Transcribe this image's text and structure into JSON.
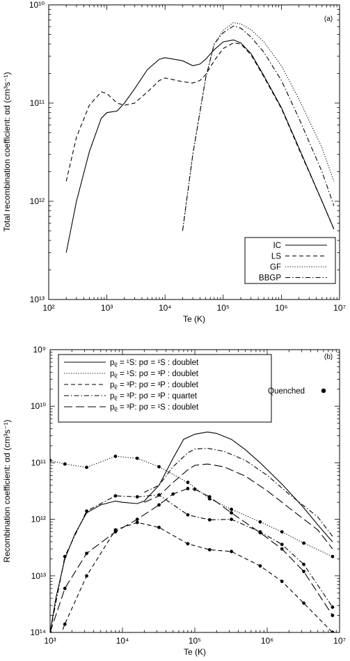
{
  "chart_data": [
    {
      "type": "line",
      "panel_label": "(a)",
      "xlabel": "Te (K)",
      "ylabel": "Total recombination coefficient: αd (cm³s⁻¹)",
      "xscale": "log",
      "yscale": "log",
      "xlim": [
        100,
        10000000
      ],
      "ylim": [
        1e-13,
        1e-10
      ],
      "x_ticks": [
        {
          "value": 100,
          "label": "10²"
        },
        {
          "value": 1000,
          "label": "10³"
        },
        {
          "value": 10000,
          "label": "10⁴"
        },
        {
          "value": 100000,
          "label": "10⁵"
        },
        {
          "value": 1000000,
          "label": "10⁶"
        },
        {
          "value": 10000000,
          "label": "10⁷"
        }
      ],
      "y_ticks": [
        {
          "value": 1e-10,
          "label": "10¹⁰"
        },
        {
          "value": 1e-11,
          "label": "10¹¹"
        },
        {
          "value": 1e-12,
          "label": "10¹²"
        },
        {
          "value": 1e-13,
          "label": "10¹³"
        }
      ],
      "legend_position": "bottom-right",
      "series": [
        {
          "name": "IC",
          "dash": "solid",
          "x": [
            200,
            300,
            500,
            800,
            1000,
            1500,
            2000,
            3000,
            5000,
            8000,
            10000,
            20000,
            30000,
            40000,
            50000,
            70000,
            100000,
            150000,
            200000,
            300000,
            500000,
            1000000,
            2000000,
            5000000,
            8000000
          ],
          "y": [
            3e-13,
            1e-12,
            3.2e-12,
            7e-12,
            8e-12,
            8.3e-12,
            1e-11,
            1.4e-11,
            2.2e-11,
            2.8e-11,
            2.9e-11,
            2.7e-11,
            2.4e-11,
            2.5e-11,
            2.8e-11,
            3.5e-11,
            4.2e-11,
            4.4e-11,
            4.1e-11,
            3.2e-11,
            1.9e-11,
            9e-12,
            3.5e-12,
            1e-12,
            5.2e-13
          ]
        },
        {
          "name": "LS",
          "dash": "dashed",
          "x": [
            200,
            300,
            500,
            800,
            1000,
            1500,
            2000,
            3000,
            5000,
            8000,
            10000,
            20000,
            30000,
            40000,
            50000,
            70000,
            100000,
            150000,
            200000,
            300000,
            500000,
            1000000,
            2000000,
            5000000,
            8000000
          ],
          "y": [
            1.6e-12,
            4.5e-12,
            9.5e-12,
            1.3e-11,
            1.25e-11,
            1e-11,
            9.5e-12,
            1e-11,
            1.3e-11,
            1.7e-11,
            1.8e-11,
            1.65e-11,
            1.6e-11,
            1.7e-11,
            1.95e-11,
            2.7e-11,
            3.6e-11,
            4.1e-11,
            4e-11,
            3.1e-11,
            1.85e-11,
            8.8e-12,
            3.4e-12,
            1e-12,
            5.2e-13
          ]
        },
        {
          "name": "GF",
          "dash": "dotted",
          "x": [
            20000,
            30000,
            50000,
            70000,
            100000,
            150000,
            200000,
            300000,
            500000,
            1000000,
            2000000,
            5000000,
            8000000
          ],
          "y": [
            5e-13,
            3e-12,
            1.8e-11,
            4e-11,
            5.5e-11,
            6.6e-11,
            6.4e-11,
            5.6e-11,
            4.2e-11,
            2.4e-11,
            1.1e-11,
            3.5e-12,
            1.6e-12
          ]
        },
        {
          "name": "BBGP",
          "dash": "dashdot",
          "x": [
            20000,
            30000,
            50000,
            70000,
            100000,
            150000,
            200000,
            300000,
            500000,
            1000000,
            2000000,
            5000000,
            8000000
          ],
          "y": [
            5e-13,
            3e-12,
            1.8e-11,
            4e-11,
            5.2e-11,
            6.1e-11,
            5.8e-11,
            4.7e-11,
            3.3e-11,
            1.7e-11,
            7e-12,
            2e-12,
            9e-13
          ]
        }
      ]
    },
    {
      "type": "line",
      "panel_label": "(b)",
      "xlabel": "Te (K)",
      "ylabel": "Recombination coefficient: αd (cm³s⁻¹)",
      "xscale": "log",
      "yscale": "log",
      "xlim": [
        1000,
        10000000
      ],
      "ylim": [
        1e-14,
        1e-09
      ],
      "x_ticks": [
        {
          "value": 1000,
          "label": "10³"
        },
        {
          "value": 10000,
          "label": "10⁴"
        },
        {
          "value": 100000,
          "label": "10⁵"
        },
        {
          "value": 1000000,
          "label": "10⁶"
        },
        {
          "value": 10000000,
          "label": "10⁷"
        }
      ],
      "y_ticks": [
        {
          "value": 1e-09,
          "label": "10⁹"
        },
        {
          "value": 1e-10,
          "label": "10¹⁰"
        },
        {
          "value": 1e-11,
          "label": "10¹¹"
        },
        {
          "value": 1e-12,
          "label": "10¹²"
        },
        {
          "value": 1e-13,
          "label": "10¹³"
        },
        {
          "value": 1e-14,
          "label": "10¹⁴"
        }
      ],
      "legend_position": "top-left",
      "quenched_label": "Quenched",
      "series": [
        {
          "name": "pᵨ = ¹S: pσ = ¹S : doublet",
          "dash": "solid",
          "x": [
            1000,
            1200,
            1600,
            2200,
            3200,
            5000,
            8000,
            10000,
            16000,
            20000,
            32000,
            50000,
            70000,
            100000,
            150000,
            200000,
            320000,
            500000,
            800000,
            1600000,
            3200000,
            5000000,
            8000000
          ],
          "y": [
            1e-14,
            4e-14,
            2e-13,
            5.5e-13,
            1.3e-12,
            1.8e-12,
            2.1e-12,
            2e-12,
            1.9e-12,
            2.1e-12,
            4e-12,
            1.2e-11,
            2.6e-11,
            3.2e-11,
            3.5e-11,
            3.3e-11,
            2.6e-11,
            1.7e-11,
            1e-11,
            4.2e-12,
            1.6e-12,
            8e-13,
            4e-13
          ]
        },
        {
          "name": "pᵨ = ¹S: pσ = ³P : doublet",
          "dash": "dotted",
          "markers": true,
          "x": [
            1000,
            1600,
            3200,
            8000,
            16000,
            32000,
            80000,
            160000,
            320000,
            800000,
            1600000,
            3200000,
            8000000
          ],
          "y": [
            1.1e-11,
            9.5e-12,
            8.3e-12,
            1.3e-11,
            1.2e-11,
            8.5e-12,
            4.5e-12,
            2.3e-12,
            1.5e-12,
            9e-13,
            6e-13,
            3.8e-13,
            2.2e-13
          ]
        },
        {
          "name": "pᵨ = ³P: pσ = ³P : doublet",
          "dash": "dashed",
          "markers": true,
          "x": [
            1000,
            1600,
            3200,
            8000,
            16000,
            32000,
            80000,
            160000,
            320000,
            800000,
            1600000,
            3200000,
            8000000
          ],
          "y": [
            3e-15,
            1.4e-14,
            1e-13,
            6.5e-13,
            8.8e-13,
            7.2e-13,
            3.7e-13,
            2.9e-13,
            2.7e-13,
            1.5e-13,
            8e-14,
            3.3e-14,
            1e-14
          ]
        },
        {
          "name": "pᵨ = ³P: pσ = ³P : quartet",
          "dash": "dashdot",
          "markers": true,
          "x": [
            1000,
            1600,
            3200,
            8000,
            16000,
            32000,
            80000,
            160000,
            320000,
            800000,
            1600000,
            3200000,
            8000000
          ],
          "y": [
            1e-14,
            2.2e-13,
            1.4e-12,
            2.6e-12,
            2.5e-12,
            2.7e-12,
            1.2e-12,
            9.8e-13,
            1e-12,
            6e-13,
            3.6e-13,
            1.6e-13,
            2.8e-14
          ]
        },
        {
          "name": "pᵨ = ³P: pσ = ¹S : doublet",
          "dash": "longdash",
          "markers": true,
          "x": [
            1000,
            1600,
            3200,
            8000,
            16000,
            32000,
            50000,
            80000,
            100000,
            160000,
            320000,
            800000,
            1600000,
            3200000,
            8000000
          ],
          "y": [
            1e-14,
            6e-14,
            2.5e-13,
            6e-13,
            1e-12,
            1.8e-12,
            2.8e-12,
            3.5e-12,
            3.4e-12,
            2.5e-12,
            1.3e-12,
            5.8e-13,
            3e-13,
            1.2e-13,
            2e-14
          ]
        },
        {
          "name": "",
          "dash": "dashdot",
          "markers": false,
          "x": [
            20000,
            32000,
            50000,
            80000,
            100000,
            150000,
            250000,
            500000,
            1000000,
            2000000,
            5000000,
            8000000
          ],
          "y": [
            3e-12,
            4e-12,
            8.5e-12,
            1.5e-11,
            1.75e-11,
            1.8e-11,
            1.6e-11,
            1.1e-11,
            6e-12,
            2.8e-12,
            1.1e-12,
            5e-13
          ]
        },
        {
          "name": "",
          "dash": "longdash",
          "markers": false,
          "x": [
            20000,
            32000,
            50000,
            80000,
            100000,
            150000,
            250000,
            500000,
            1000000,
            2000000,
            5000000,
            8000000
          ],
          "y": [
            2e-12,
            2.6e-12,
            4.5e-12,
            7.5e-12,
            9e-12,
            9.5e-12,
            8.5e-12,
            5.8e-12,
            3.2e-12,
            1.6e-12,
            6.5e-13,
            3e-13
          ]
        }
      ]
    }
  ]
}
